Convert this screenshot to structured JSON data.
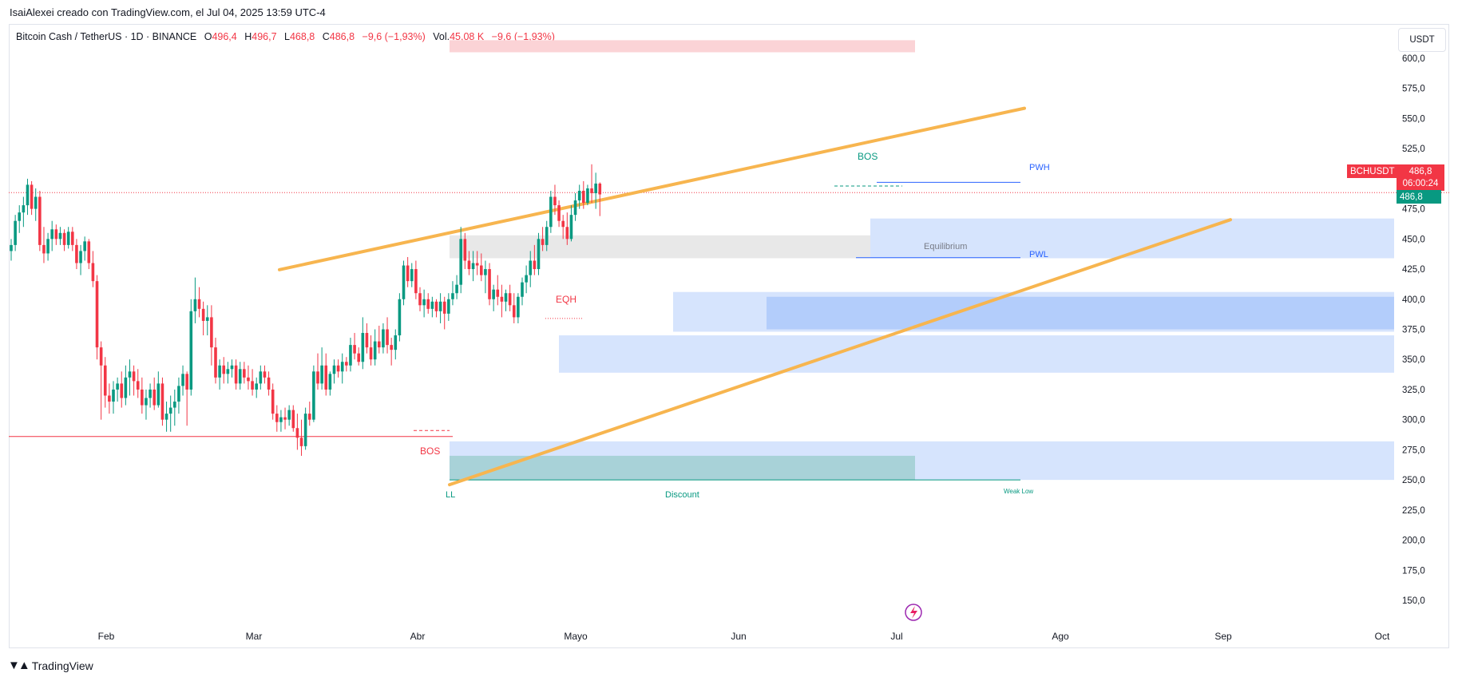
{
  "header": {
    "caption": "IsaiAlexei creado con TradingView.com, el Jul 04, 2025 13:59 UTC-4"
  },
  "legend": {
    "symbol": "Bitcoin Cash / TetherUS · 1D · BINANCE",
    "open_label": "O",
    "open": "496,4",
    "high_label": "H",
    "high": "496,7",
    "low_label": "L",
    "low": "468,8",
    "close_label": "C",
    "close": "486,8",
    "change": "−9,6 (−1,93%)",
    "vol_label": "Vol.",
    "vol": "45,08 K",
    "vol_change": "−9,6 (−1,93%)"
  },
  "currency": "USDT",
  "price_tags": {
    "ticker": "BCHUSDT",
    "last": "486,8",
    "countdown": "06:00:24",
    "last2": "486,8"
  },
  "footer": {
    "brand": "TradingView"
  },
  "colors": {
    "up": "#089981",
    "down": "#f23645",
    "trendline": "#f7b54f",
    "zone_light": "#d6e4fd",
    "zone_dark": "#b3cdfb",
    "zone_gray": "#e8e8e8",
    "zone_teal": "#a8d2d8",
    "zone_red": "#fbd3d6",
    "blue_line": "#2962ff",
    "teal_text": "#089981",
    "red_text": "#f23645"
  },
  "chart_data": {
    "type": "candlestick",
    "y_axis": {
      "min": 150,
      "max": 600,
      "ticks": [
        "600,0",
        "575,0",
        "550,0",
        "525,0",
        "500,0",
        "475,0",
        "450,0",
        "425,0",
        "400,0",
        "375,0",
        "350,0",
        "325,0",
        "300,0",
        "275,0",
        "250,0",
        "225,0",
        "200,0",
        "175,0",
        "150,0"
      ]
    },
    "x_axis": {
      "ticks": [
        "Feb",
        "Mar",
        "Abr",
        "Mayo",
        "Jun",
        "Jul",
        "Ago",
        "Sep",
        "Oct"
      ]
    },
    "candles": [
      [
        440,
        450,
        432,
        445
      ],
      [
        445,
        470,
        440,
        465
      ],
      [
        465,
        478,
        455,
        472
      ],
      [
        472,
        485,
        460,
        478
      ],
      [
        478,
        500,
        470,
        495
      ],
      [
        495,
        498,
        470,
        475
      ],
      [
        475,
        492,
        465,
        485
      ],
      [
        485,
        490,
        440,
        445
      ],
      [
        445,
        460,
        430,
        438
      ],
      [
        438,
        455,
        432,
        450
      ],
      [
        450,
        465,
        440,
        458
      ],
      [
        458,
        462,
        445,
        450
      ],
      [
        450,
        460,
        445,
        455
      ],
      [
        455,
        458,
        440,
        445
      ],
      [
        445,
        460,
        442,
        456
      ],
      [
        456,
        460,
        440,
        445
      ],
      [
        445,
        450,
        425,
        430
      ],
      [
        430,
        445,
        420,
        440
      ],
      [
        440,
        452,
        432,
        448
      ],
      [
        448,
        450,
        425,
        430
      ],
      [
        430,
        440,
        410,
        415
      ],
      [
        415,
        420,
        350,
        360
      ],
      [
        360,
        365,
        300,
        345
      ],
      [
        345,
        352,
        310,
        320
      ],
      [
        320,
        330,
        305,
        315
      ],
      [
        315,
        332,
        305,
        325
      ],
      [
        325,
        335,
        315,
        330
      ],
      [
        330,
        340,
        310,
        318
      ],
      [
        318,
        345,
        312,
        335
      ],
      [
        335,
        350,
        320,
        340
      ],
      [
        340,
        345,
        320,
        332
      ],
      [
        332,
        342,
        318,
        325
      ],
      [
        325,
        335,
        305,
        312
      ],
      [
        312,
        325,
        300,
        318
      ],
      [
        318,
        330,
        310,
        325
      ],
      [
        325,
        335,
        308,
        312
      ],
      [
        312,
        340,
        310,
        330
      ],
      [
        330,
        335,
        295,
        300
      ],
      [
        300,
        315,
        290,
        305
      ],
      [
        305,
        320,
        290,
        310
      ],
      [
        310,
        325,
        295,
        315
      ],
      [
        315,
        335,
        305,
        328
      ],
      [
        328,
        345,
        320,
        338
      ],
      [
        338,
        340,
        295,
        325
      ],
      [
        325,
        400,
        320,
        390
      ],
      [
        390,
        418,
        380,
        400
      ],
      [
        400,
        410,
        385,
        392
      ],
      [
        392,
        398,
        370,
        382
      ],
      [
        382,
        395,
        370,
        385
      ],
      [
        385,
        395,
        345,
        360
      ],
      [
        360,
        368,
        330,
        335
      ],
      [
        335,
        350,
        325,
        345
      ],
      [
        345,
        352,
        330,
        338
      ],
      [
        338,
        348,
        330,
        342
      ],
      [
        342,
        350,
        335,
        345
      ],
      [
        345,
        350,
        325,
        330
      ],
      [
        330,
        348,
        325,
        342
      ],
      [
        342,
        348,
        330,
        335
      ],
      [
        335,
        345,
        325,
        332
      ],
      [
        332,
        342,
        320,
        325
      ],
      [
        325,
        335,
        318,
        330
      ],
      [
        330,
        345,
        325,
        340
      ],
      [
        340,
        345,
        330,
        335
      ],
      [
        335,
        340,
        320,
        325
      ],
      [
        325,
        330,
        300,
        305
      ],
      [
        305,
        312,
        290,
        298
      ],
      [
        298,
        308,
        290,
        302
      ],
      [
        302,
        310,
        292,
        300
      ],
      [
        300,
        312,
        295,
        308
      ],
      [
        308,
        312,
        290,
        293
      ],
      [
        293,
        305,
        275,
        285
      ],
      [
        285,
        300,
        270,
        278
      ],
      [
        278,
        310,
        275,
        305
      ],
      [
        305,
        315,
        295,
        300
      ],
      [
        300,
        345,
        298,
        340
      ],
      [
        340,
        355,
        325,
        330
      ],
      [
        330,
        360,
        325,
        345
      ],
      [
        345,
        355,
        320,
        325
      ],
      [
        325,
        340,
        320,
        338
      ],
      [
        338,
        350,
        330,
        345
      ],
      [
        345,
        350,
        335,
        340
      ],
      [
        340,
        355,
        330,
        348
      ],
      [
        348,
        352,
        340,
        345
      ],
      [
        345,
        368,
        340,
        362
      ],
      [
        362,
        372,
        350,
        355
      ],
      [
        355,
        360,
        345,
        348
      ],
      [
        348,
        385,
        342,
        372
      ],
      [
        372,
        380,
        355,
        360
      ],
      [
        360,
        370,
        345,
        350
      ],
      [
        350,
        375,
        345,
        365
      ],
      [
        365,
        378,
        355,
        360
      ],
      [
        360,
        380,
        355,
        375
      ],
      [
        375,
        385,
        355,
        362
      ],
      [
        362,
        368,
        345,
        358
      ],
      [
        358,
        375,
        350,
        370
      ],
      [
        370,
        405,
        365,
        400
      ],
      [
        400,
        432,
        395,
        428
      ],
      [
        428,
        435,
        410,
        415
      ],
      [
        415,
        430,
        410,
        425
      ],
      [
        425,
        432,
        400,
        405
      ],
      [
        405,
        410,
        390,
        395
      ],
      [
        395,
        408,
        385,
        400
      ],
      [
        400,
        405,
        388,
        392
      ],
      [
        392,
        402,
        385,
        398
      ],
      [
        398,
        400,
        385,
        390
      ],
      [
        390,
        405,
        380,
        398
      ],
      [
        398,
        402,
        375,
        388
      ],
      [
        388,
        405,
        382,
        400
      ],
      [
        400,
        415,
        395,
        405
      ],
      [
        405,
        420,
        400,
        412
      ],
      [
        412,
        460,
        405,
        450
      ],
      [
        450,
        455,
        425,
        432
      ],
      [
        432,
        440,
        420,
        425
      ],
      [
        425,
        440,
        415,
        430
      ],
      [
        430,
        440,
        420,
        428
      ],
      [
        428,
        438,
        415,
        420
      ],
      [
        420,
        432,
        405,
        425
      ],
      [
        425,
        430,
        395,
        400
      ],
      [
        400,
        412,
        390,
        408
      ],
      [
        408,
        420,
        395,
        402
      ],
      [
        402,
        412,
        385,
        398
      ],
      [
        398,
        408,
        390,
        405
      ],
      [
        405,
        412,
        390,
        395
      ],
      [
        395,
        405,
        380,
        385
      ],
      [
        385,
        405,
        380,
        402
      ],
      [
        402,
        418,
        395,
        414
      ],
      [
        414,
        428,
        405,
        420
      ],
      [
        420,
        440,
        410,
        432
      ],
      [
        432,
        445,
        420,
        425
      ],
      [
        425,
        455,
        420,
        450
      ],
      [
        450,
        460,
        440,
        445
      ],
      [
        445,
        465,
        440,
        460
      ],
      [
        460,
        490,
        455,
        485
      ],
      [
        485,
        495,
        470,
        478
      ],
      [
        478,
        482,
        460,
        465
      ],
      [
        465,
        470,
        450,
        460
      ],
      [
        460,
        472,
        445,
        450
      ],
      [
        450,
        478,
        448,
        470
      ],
      [
        470,
        488,
        465,
        482
      ],
      [
        482,
        495,
        475,
        490
      ],
      [
        490,
        498,
        475,
        480
      ],
      [
        480,
        495,
        478,
        492
      ],
      [
        492,
        512,
        480,
        488
      ],
      [
        488,
        505,
        475,
        496
      ],
      [
        496,
        497,
        469,
        487
      ]
    ]
  }
}
